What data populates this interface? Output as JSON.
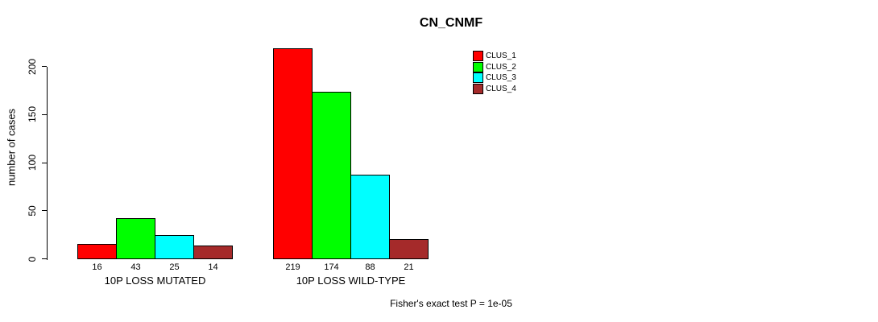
{
  "title": "CN_CNMF",
  "footnote": "Fisher's exact test P = 1e-05",
  "colors": {
    "clus_1": "#FF0000",
    "clus_2": "#00FF00",
    "clus_3": "#00FFFF",
    "clus_4": "#A52A2A",
    "axis": "#000000",
    "background": "#FFFFFF"
  },
  "chart_data": {
    "type": "bar",
    "title": "CN_CNMF",
    "xlabel": "",
    "ylabel": "number of cases",
    "ylim": [
      0,
      200
    ],
    "yticks": [
      0,
      50,
      100,
      150,
      200
    ],
    "grid": false,
    "legend_position": "top-right",
    "categories": [
      "10P LOSS MUTATED",
      "10P LOSS WILD-TYPE"
    ],
    "series": [
      {
        "name": "CLUS_1",
        "color": "#FF0000",
        "values": [
          16,
          219
        ]
      },
      {
        "name": "CLUS_2",
        "color": "#00FF00",
        "values": [
          43,
          174
        ]
      },
      {
        "name": "CLUS_3",
        "color": "#00FFFF",
        "values": [
          25,
          88
        ]
      },
      {
        "name": "CLUS_4",
        "color": "#A52A2A",
        "values": [
          14,
          21
        ]
      }
    ],
    "bar_value_labels": [
      [
        16,
        43,
        25,
        14
      ],
      [
        219,
        174,
        88,
        21
      ]
    ],
    "annotation": "Fisher's exact test P = 1e-05"
  }
}
